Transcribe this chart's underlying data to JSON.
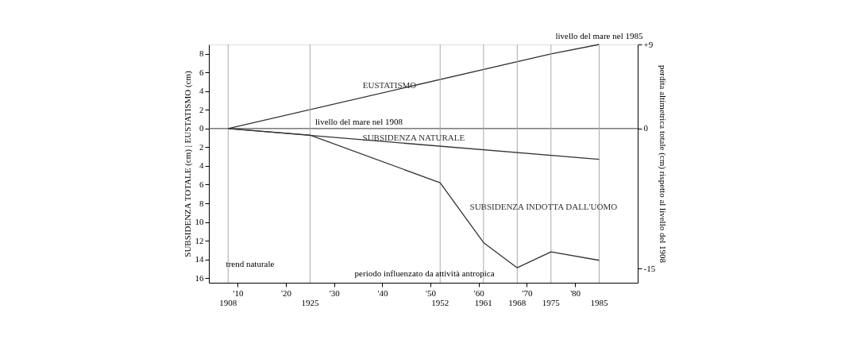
{
  "chart_data": {
    "type": "line",
    "ylabel": "SUBSIDENZA TOTALE (cm) | EUSTATISMO (cm)",
    "y2label": "perdita altimetrica totale (cm) rispetto al livello del 1908",
    "xlim": [
      1904,
      1993
    ],
    "xticks": [
      {
        "value": 1910,
        "label": "'10"
      },
      {
        "value": 1920,
        "label": "'20"
      },
      {
        "value": 1930,
        "label": "'30"
      },
      {
        "value": 1940,
        "label": "'40"
      },
      {
        "value": 1950,
        "label": "'50"
      },
      {
        "value": 1960,
        "label": "'60"
      },
      {
        "value": 1970,
        "label": "'70"
      },
      {
        "value": 1980,
        "label": "'80"
      }
    ],
    "ylim": [
      -16.5,
      9
    ],
    "yticks": [
      8,
      6,
      4,
      2,
      0,
      {
        "value": -2,
        "label": "2"
      },
      {
        "value": -4,
        "label": "4"
      },
      {
        "value": -6,
        "label": "6"
      },
      {
        "value": -8,
        "label": "8"
      },
      {
        "value": -10,
        "label": "10"
      },
      {
        "value": -12,
        "label": "12"
      },
      {
        "value": -14,
        "label": "14"
      },
      {
        "value": -16,
        "label": "16"
      }
    ],
    "y2lim": [
      -16.5,
      9
    ],
    "y2ticks": [
      {
        "value": 9,
        "label": "+9"
      },
      0,
      {
        "value": -15,
        "label": "-15"
      }
    ],
    "series": [
      {
        "name": "EUSTATISMO",
        "color": "#333333",
        "x": [
          1908,
          1975,
          1985
        ],
        "values": [
          0,
          8,
          9
        ]
      },
      {
        "name": "SUBSIDENZA NATURALE",
        "color": "#333333",
        "x": [
          1908,
          1985
        ],
        "values": [
          0,
          -3.3
        ]
      },
      {
        "name": "SUBSIDENZA INDOTTA DALL'UOMO",
        "color": "#333333",
        "x": [
          1908,
          1925,
          1952,
          1961,
          1968,
          1975,
          1985
        ],
        "values": [
          0,
          -0.7,
          -5.8,
          -12.2,
          -14.9,
          -13.2,
          -14.1
        ]
      }
    ],
    "ref_lines": [
      {
        "axis": "y",
        "value": 0,
        "label": "livello del mare nel 1908",
        "color": "#333333"
      },
      {
        "axis": "x",
        "value": 1908,
        "label": "1908",
        "color": "#aaaaaa"
      },
      {
        "axis": "x",
        "value": 1925,
        "label": "1925",
        "color": "#aaaaaa"
      },
      {
        "axis": "x",
        "value": 1952,
        "label": "1952",
        "color": "#aaaaaa"
      },
      {
        "axis": "x",
        "value": 1961,
        "label": "1961",
        "color": "#aaaaaa"
      },
      {
        "axis": "x",
        "value": 1968,
        "label": "1968",
        "color": "#aaaaaa"
      },
      {
        "axis": "x",
        "value": 1975,
        "label": "1975",
        "color": "#aaaaaa"
      },
      {
        "axis": "x",
        "value": 1985,
        "label": "1985",
        "color": "#aaaaaa"
      }
    ],
    "annotations": [
      {
        "text": "livello del mare nel 1985",
        "x": 1985,
        "y": 9
      },
      "trend naturale",
      "periodo influenzato da attività antropica"
    ],
    "grid": false,
    "legend": false,
    "marker": "none",
    "line_style": "solid"
  }
}
